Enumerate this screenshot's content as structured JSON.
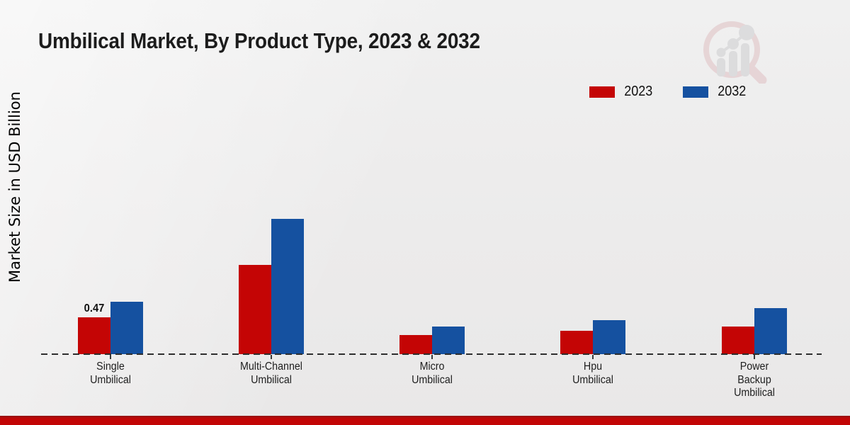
{
  "page": {
    "watermark": "market-research-future-logo",
    "footer_accent_color": "#c20505",
    "background_color": "#ececec"
  },
  "chart_data": {
    "type": "bar",
    "title": "Umbilical Market, By Product Type, 2023 & 2032",
    "xlabel": "",
    "ylabel": "Market Size in USD Billion",
    "categories": [
      "Single\nUmbilical",
      "Multi-Channel\nUmbilical",
      "Micro\nUmbilical",
      "Hpu\nUmbilical",
      "Power\nBackup\nUmbilical"
    ],
    "series": [
      {
        "name": "2023",
        "color": "#c40505",
        "values": [
          0.47,
          1.14,
          0.24,
          0.3,
          0.35
        ]
      },
      {
        "name": "2032",
        "color": "#1551a0",
        "values": [
          0.67,
          1.73,
          0.35,
          0.43,
          0.59
        ]
      }
    ],
    "annotations": [
      {
        "category_index": 0,
        "series_index": 0,
        "text": "0.47"
      }
    ],
    "ylim": [
      0,
      2.0
    ],
    "grid": false,
    "legend_position": "top-right",
    "x_axis_style": "dashed"
  }
}
